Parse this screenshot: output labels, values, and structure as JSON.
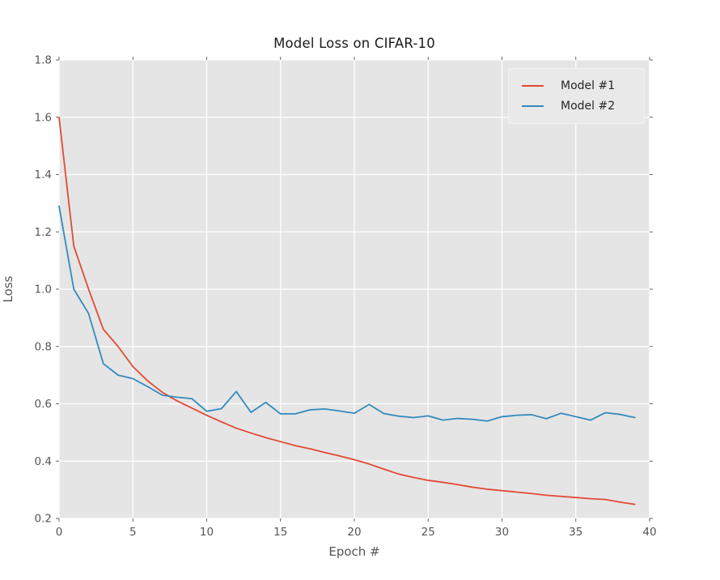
{
  "title": "Model Loss on CIFAR-10",
  "axes": {
    "x_label": "Epoch #",
    "y_label": "Loss"
  },
  "legend": {
    "position": "upper right",
    "items": [
      {
        "label": "Model #1",
        "color": "#e24a33"
      },
      {
        "label": "Model #2",
        "color": "#348abd"
      }
    ]
  },
  "colors": {
    "figure_background": "#ffffff",
    "plot_background": "#e5e5e5",
    "gridline": "#ffffff",
    "tick_text": "#555555",
    "title_text": "#1a1a1a",
    "series1": "#e24a33",
    "series2": "#348abd"
  },
  "chart_data": {
    "type": "line",
    "title": "Model Loss on CIFAR-10",
    "xlabel": "Epoch #",
    "ylabel": "Loss",
    "xlim": [
      0,
      40
    ],
    "ylim": [
      0.2,
      1.8
    ],
    "xticks": [
      0,
      5,
      10,
      15,
      20,
      25,
      30,
      35,
      40
    ],
    "yticks": [
      0.2,
      0.4,
      0.6,
      0.8,
      1.0,
      1.2,
      1.4,
      1.6,
      1.8
    ],
    "grid": true,
    "legend_position": "upper right",
    "x": [
      0,
      1,
      2,
      3,
      4,
      5,
      6,
      7,
      8,
      9,
      10,
      11,
      12,
      13,
      14,
      15,
      16,
      17,
      18,
      19,
      20,
      21,
      22,
      23,
      24,
      25,
      26,
      27,
      28,
      29,
      30,
      31,
      32,
      33,
      34,
      35,
      36,
      37,
      38,
      39
    ],
    "series": [
      {
        "name": "Model #1",
        "color": "#e24a33",
        "values": [
          1.6,
          1.15,
          1.0,
          0.86,
          0.8,
          0.73,
          0.68,
          0.64,
          0.61,
          0.585,
          0.56,
          0.537,
          0.515,
          0.498,
          0.482,
          0.468,
          0.454,
          0.443,
          0.43,
          0.418,
          0.405,
          0.39,
          0.372,
          0.355,
          0.343,
          0.333,
          0.326,
          0.318,
          0.309,
          0.302,
          0.297,
          0.292,
          0.287,
          0.281,
          0.277,
          0.273,
          0.269,
          0.266,
          0.257,
          0.249
        ]
      },
      {
        "name": "Model #2",
        "color": "#348abd",
        "values": [
          1.29,
          1.0,
          0.915,
          0.74,
          0.7,
          0.688,
          0.66,
          0.63,
          0.623,
          0.618,
          0.574,
          0.583,
          0.643,
          0.57,
          0.605,
          0.565,
          0.565,
          0.579,
          0.582,
          0.575,
          0.567,
          0.598,
          0.566,
          0.557,
          0.552,
          0.558,
          0.543,
          0.549,
          0.546,
          0.54,
          0.555,
          0.56,
          0.562,
          0.548,
          0.567,
          0.555,
          0.543,
          0.569,
          0.563,
          0.552
        ]
      }
    ]
  }
}
